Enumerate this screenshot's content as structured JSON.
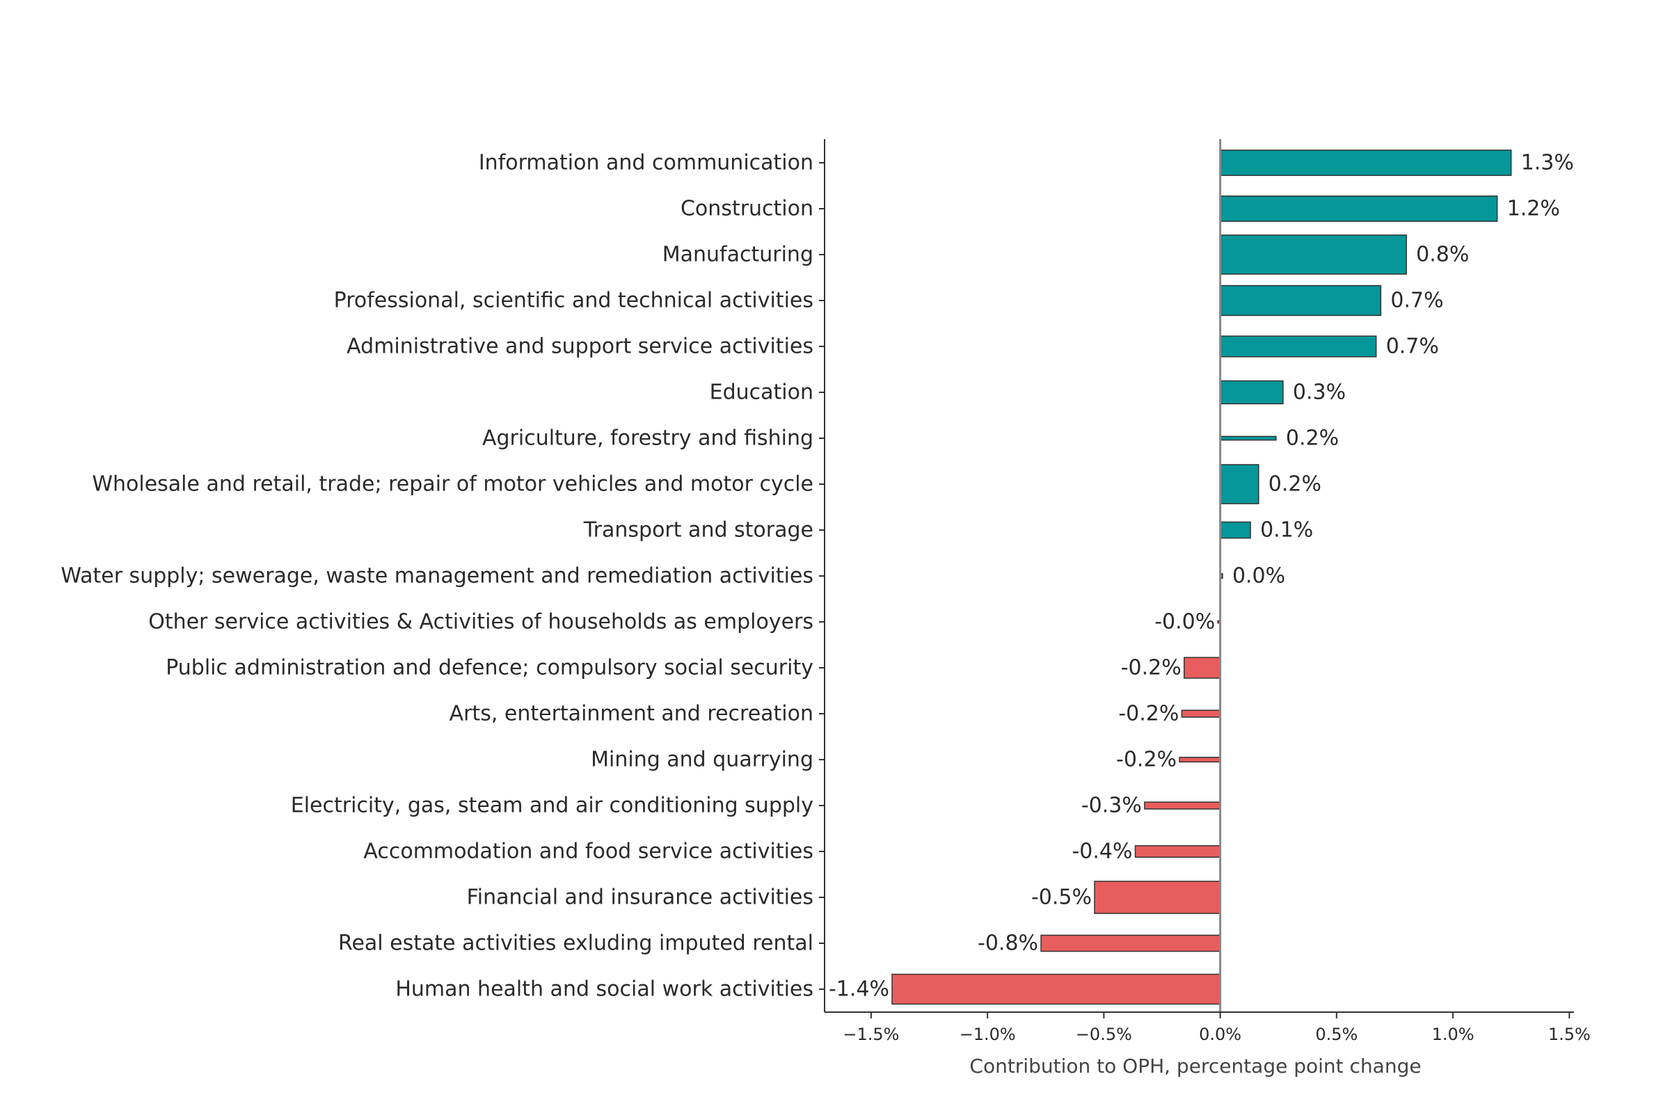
{
  "chart_data": {
    "type": "bar",
    "orientation": "horizontal",
    "categories": [
      "Information and communication",
      "Construction",
      "Manufacturing",
      "Professional, scientific and technical activities",
      "Administrative and support service activities",
      "Education",
      "Agriculture, forestry and fishing",
      "Wholesale and retail, trade; repair of motor vehicles and motor cycle",
      "Transport and storage",
      "Water supply; sewerage, waste management and remediation activities",
      "Other service activities & Activities of households as employers",
      "Public administration and defence; compulsory social security",
      "Arts, entertainment and recreation",
      "Mining and quarrying",
      "Electricity, gas, steam and air conditioning supply",
      "Accommodation and food service activities",
      "Financial and insurance activities",
      "Real estate activities exluding imputed rental",
      "Human health and social work activities"
    ],
    "values": [
      1.25,
      1.19,
      0.8,
      0.69,
      0.67,
      0.27,
      0.24,
      0.165,
      0.13,
      0.01,
      -0.01,
      -0.155,
      -0.165,
      -0.175,
      -0.325,
      -0.365,
      -0.54,
      -0.77,
      -1.41
    ],
    "data_labels": [
      "1.3%",
      "1.2%",
      "0.8%",
      "0.7%",
      "0.7%",
      "0.3%",
      "0.2%",
      "0.2%",
      "0.1%",
      "0.0%",
      "-0.0%",
      "-0.2%",
      "-0.2%",
      "-0.2%",
      "-0.3%",
      "-0.4%",
      "-0.5%",
      "-0.8%",
      "-1.4%"
    ],
    "bar_thickness": [
      0.55,
      0.55,
      0.85,
      0.65,
      0.45,
      0.5,
      0.08,
      0.85,
      0.35,
      0.1,
      0.05,
      0.45,
      0.15,
      0.1,
      0.15,
      0.25,
      0.7,
      0.35,
      0.65
    ],
    "xlim": [
      -1.7,
      1.52
    ],
    "xticks": [
      -1.5,
      -1.0,
      -0.5,
      0.0,
      0.5,
      1.0,
      1.5
    ],
    "xtick_labels": [
      "−1.5%",
      "−1.0%",
      "−0.5%",
      "0.0%",
      "0.5%",
      "1.0%",
      "1.5%"
    ],
    "xlabel": "Contribution to OPH, percentage point change",
    "ylabel": "",
    "title": "",
    "colors": {
      "positive": "#06979A",
      "negative": "#E85D5D",
      "bar_outline": "#333333",
      "axis": "#333333",
      "zero_line": "#888888"
    },
    "grid": false
  }
}
